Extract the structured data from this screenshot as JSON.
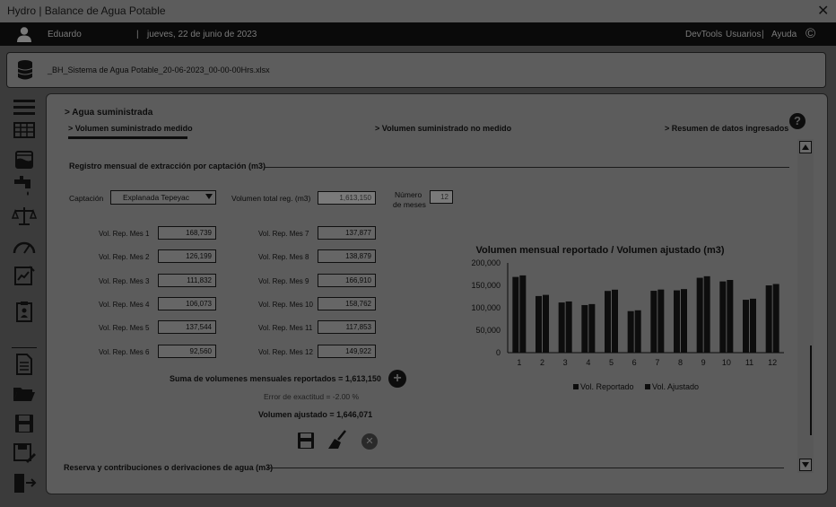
{
  "window": {
    "title": "Hydro | Balance de Agua Potable",
    "close": "✕"
  },
  "userbar": {
    "user": "Eduardo",
    "separator": "|",
    "date": "jueves, 22 de junio de 2023",
    "devtools": "DevTools",
    "usuarios": "Usuarios",
    "sep2": "|",
    "ayuda": "Ayuda",
    "copyright": "©"
  },
  "file": {
    "name": "_BH_Sistema de Agua Potable_20-06-2023_00-00-00Hrs.xlsx"
  },
  "section": {
    "title": "> Agua suministrada"
  },
  "tabs": [
    {
      "label": "> Volumen suministrado medido"
    },
    {
      "label": "> Volumen suministrado no medido"
    },
    {
      "label": "> Resumen de datos ingresados"
    }
  ],
  "help": "?",
  "registro": {
    "title": "Registro mensual de extracción por captación (m3)"
  },
  "form": {
    "captacion_label": "Captación",
    "captacion_value": "Explanada Tepeyac",
    "vol_total_label": "Volumen total reg. (m3)",
    "vol_total_value": "1,613,150",
    "num_meses_label_1": "Número",
    "num_meses_label_2": "de meses",
    "num_meses_value": "12"
  },
  "months": [
    {
      "label": "Vol. Rep. Mes 1",
      "value": "168,739"
    },
    {
      "label": "Vol. Rep. Mes 2",
      "value": "126,199"
    },
    {
      "label": "Vol. Rep. Mes 3",
      "value": "111,832"
    },
    {
      "label": "Vol. Rep. Mes 4",
      "value": "106,073"
    },
    {
      "label": "Vol. Rep. Mes 5",
      "value": "137,544"
    },
    {
      "label": "Vol. Rep. Mes 6",
      "value": "92,560"
    },
    {
      "label": "Vol. Rep. Mes 7",
      "value": "137,877"
    },
    {
      "label": "Vol. Rep. Mes 8",
      "value": "138,879"
    },
    {
      "label": "Vol. Rep. Mes 9",
      "value": "166,910"
    },
    {
      "label": "Vol. Rep. Mes 10",
      "value": "158,762"
    },
    {
      "label": "Vol. Rep. Mes 11",
      "value": "117,853"
    },
    {
      "label": "Vol. Rep. Mes 12",
      "value": "149,922"
    }
  ],
  "summary": {
    "suma_label": "Suma de volumenes mensuales reportados = ",
    "suma_value": "1,613,150",
    "error_label": "Error de exactitud = ",
    "error_value": "-2.00 %",
    "ajustado_label": "Volumen ajustado = ",
    "ajustado_value": "1,646,071"
  },
  "reserva": {
    "title": "Reserva y contribuciones o derivaciones de agua (m3)"
  },
  "colors": {
    "bar": "#0d0d0d",
    "panel": "#5c5c5c",
    "dark": "#0a0a0a"
  },
  "chart_data": {
    "type": "bar",
    "title": "Volumen mensual reportado / Volumen ajustado (m3)",
    "categories": [
      "1",
      "2",
      "3",
      "4",
      "5",
      "6",
      "7",
      "8",
      "9",
      "10",
      "11",
      "12"
    ],
    "series": [
      {
        "name": "Vol. Reportado",
        "values": [
          168739,
          126199,
          111832,
          106073,
          137544,
          92560,
          137877,
          138879,
          166910,
          158762,
          117853,
          149922
        ]
      },
      {
        "name": "Vol. Ajustado",
        "values": [
          172183,
          128774,
          114114,
          108238,
          140351,
          94449,
          140691,
          141714,
          170316,
          162002,
          120258,
          152981
        ]
      }
    ],
    "yticks": [
      "0",
      "50,000",
      "100,000",
      "150,000",
      "200,000"
    ],
    "ylim": [
      0,
      200000
    ],
    "legend": "bottom",
    "grid": false
  }
}
